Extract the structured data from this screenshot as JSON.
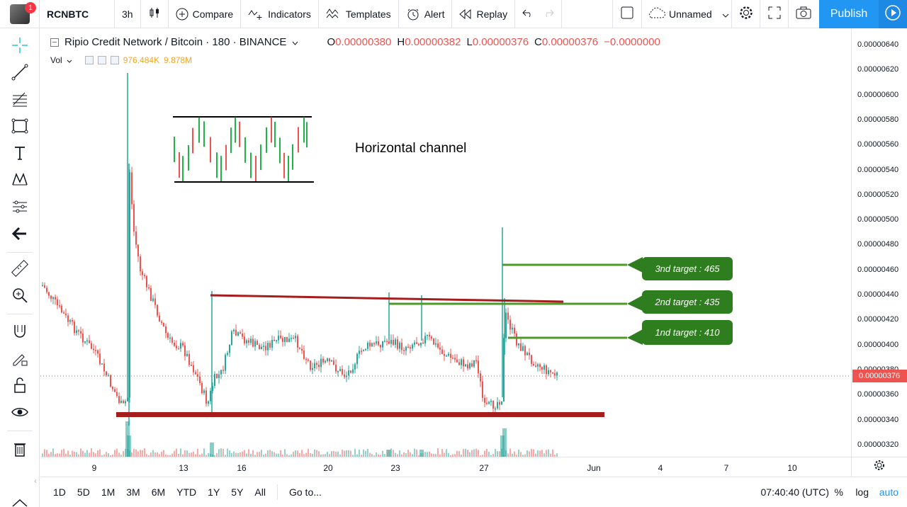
{
  "topbar": {
    "avatar_badge": "1",
    "symbol": "RCNBTC",
    "interval": "3h",
    "compare_label": "Compare",
    "indicators_label": "Indicators",
    "templates_label": "Templates",
    "alert_label": "Alert",
    "replay_label": "Replay",
    "layout_name": "Unnamed",
    "publish_label": "Publish"
  },
  "legend": {
    "title": "Ripio Credit Network / Bitcoin · 180 · BINANCE",
    "o_label": "O",
    "o_value": "0.00000380",
    "h_label": "H",
    "h_value": "0.00000382",
    "l_label": "L",
    "l_value": "0.00000376",
    "c_label": "C",
    "c_value": "0.00000376",
    "change": "−0.0000000",
    "vol_label": "Vol",
    "vol_value1": "976.484K",
    "vol_value2": "9.878M"
  },
  "annotations": {
    "channel_label": "Horizontal channel",
    "target3": "3nd target : 465",
    "target2": "2nd target : 435",
    "target1": "1nd target : 410"
  },
  "price_scale": {
    "ticks": [
      "0.00000640",
      "0.00000620",
      "0.00000600",
      "0.00000580",
      "0.00000560",
      "0.00000540",
      "0.00000520",
      "0.00000500",
      "0.00000480",
      "0.00000460",
      "0.00000440",
      "0.00000420",
      "0.00000400",
      "0.00000380",
      "0.00000360",
      "0.00000340",
      "0.00000320"
    ],
    "last_price": "0.00000376"
  },
  "time_scale": {
    "labels": [
      "9",
      "13",
      "16",
      "20",
      "23",
      "27",
      "Jun",
      "4",
      "7",
      "10"
    ]
  },
  "bottombar": {
    "ranges": [
      "1D",
      "5D",
      "1M",
      "3M",
      "6M",
      "YTD",
      "1Y",
      "5Y",
      "All"
    ],
    "goto_label": "Go to...",
    "clock": "07:40:40 (UTC)",
    "percent_label": "%",
    "log_label": "log",
    "auto_label": "auto"
  },
  "colors": {
    "up": "#26a69a",
    "down": "#ef5350",
    "target_box": "#2e7d1f",
    "support": "#a51d1d",
    "accent": "#2196f3"
  },
  "chart_data": {
    "type": "candlestick",
    "pair": "RCNBTC",
    "x": [
      "9",
      "13",
      "16",
      "20",
      "23",
      "27",
      "Jun"
    ],
    "price_ylim": [
      3.1e-06,
      6.5e-06
    ],
    "last_close": 3.76e-06,
    "resistance_line": 4.37e-06,
    "support_line": 3.44e-06,
    "targets": [
      4.65e-06,
      4.35e-06,
      4.1e-06
    ]
  }
}
